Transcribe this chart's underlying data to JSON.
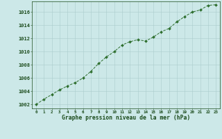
{
  "x": [
    0,
    1,
    2,
    3,
    4,
    5,
    6,
    7,
    8,
    9,
    10,
    11,
    12,
    13,
    14,
    15,
    16,
    17,
    18,
    19,
    20,
    21,
    22,
    23
  ],
  "y": [
    1002.0,
    1002.8,
    1003.5,
    1004.2,
    1004.8,
    1005.3,
    1006.0,
    1007.0,
    1008.2,
    1009.2,
    1010.0,
    1011.0,
    1011.5,
    1011.8,
    1011.6,
    1012.2,
    1013.0,
    1013.5,
    1014.5,
    1015.3,
    1016.0,
    1016.3,
    1017.0,
    1017.1
  ],
  "line_color": "#2d6e2d",
  "marker_color": "#2d6e2d",
  "bg_color": "#cce8e8",
  "grid_color": "#aacccc",
  "xlabel": "Graphe pression niveau de la mer (hPa)",
  "ylabel_ticks": [
    1002,
    1004,
    1006,
    1008,
    1010,
    1012,
    1014,
    1016
  ],
  "ylim": [
    1001.4,
    1017.6
  ],
  "xlim": [
    -0.5,
    23.5
  ],
  "xlabel_color": "#1a4a1a",
  "tick_color": "#1a4a1a",
  "x_tick_labels": [
    "0",
    "1",
    "2",
    "3",
    "4",
    "5",
    "6",
    "7",
    "8",
    "9",
    "10",
    "11",
    "12",
    "13",
    "14",
    "15",
    "16",
    "17",
    "18",
    "19",
    "20",
    "21",
    "22",
    "23"
  ]
}
